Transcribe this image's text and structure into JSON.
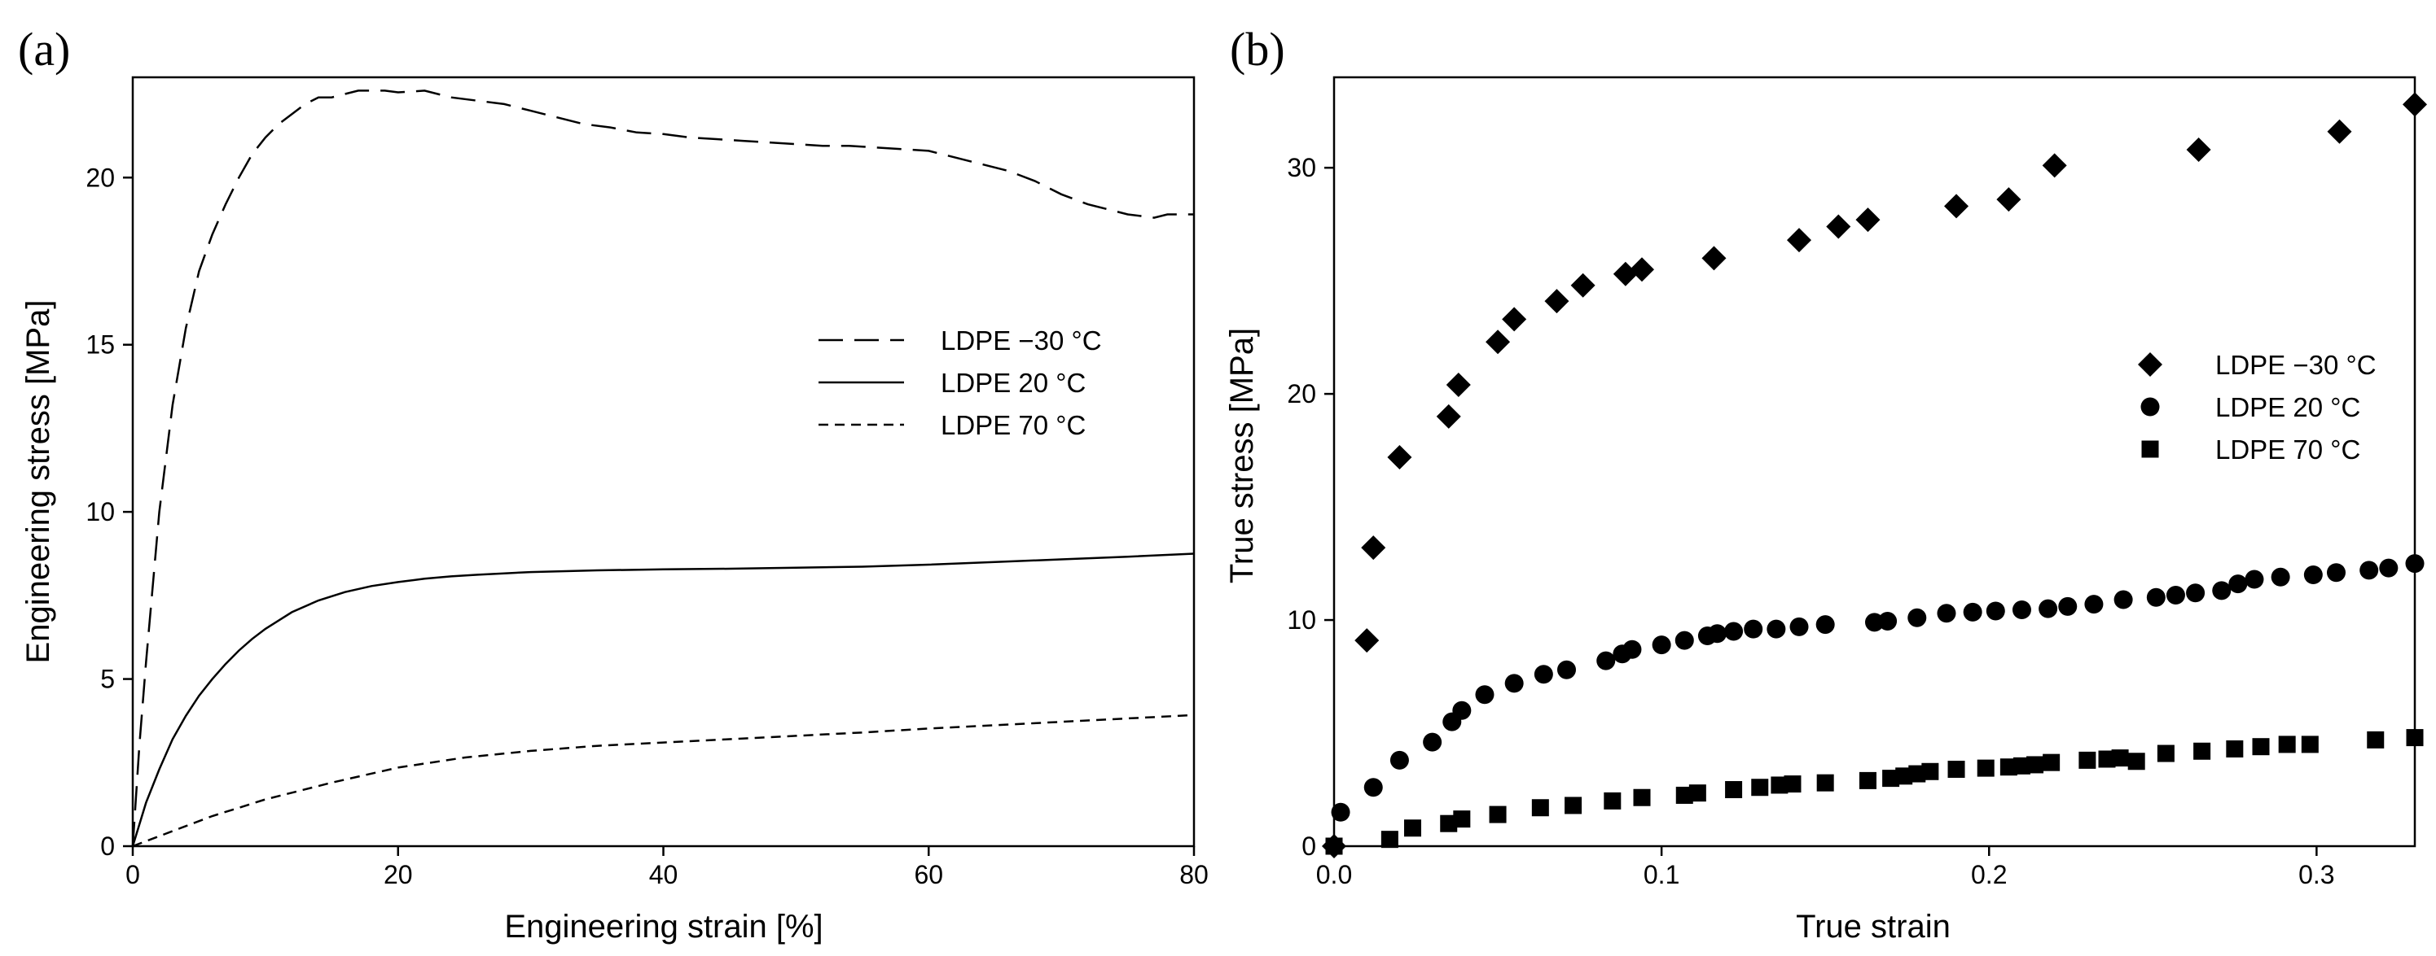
{
  "chart_data": [
    {
      "panel": "(a)",
      "type": "line",
      "xlabel": "Engineering strain [%]",
      "ylabel": "Engineering stress [MPa]",
      "xlim": [
        0,
        80
      ],
      "ylim": [
        0,
        23
      ],
      "xticks": [
        0,
        20,
        40,
        60,
        80
      ],
      "yticks": [
        0,
        5,
        10,
        15,
        20
      ],
      "legend_position": "center-right",
      "series": [
        {
          "name": "LDPE −30 °C",
          "line_style": "long-dash",
          "x": [
            0,
            0.5,
            1,
            2,
            3,
            4,
            5,
            6,
            7,
            8,
            9,
            10,
            11,
            12,
            13,
            14,
            15,
            16,
            17,
            18,
            19,
            20,
            22,
            24,
            26,
            28,
            30,
            32,
            34,
            36,
            38,
            40,
            42,
            44,
            46,
            48,
            50,
            52,
            54,
            56,
            58,
            60,
            62,
            64,
            66,
            68,
            70,
            72,
            74,
            75,
            76,
            77,
            78,
            79,
            80
          ],
          "values": [
            0,
            3.0,
            5.5,
            10.0,
            13.2,
            15.5,
            17.2,
            18.3,
            19.2,
            20.0,
            20.7,
            21.2,
            21.6,
            21.9,
            22.2,
            22.4,
            22.4,
            22.5,
            22.6,
            22.6,
            22.6,
            22.55,
            22.6,
            22.4,
            22.3,
            22.2,
            22.0,
            21.8,
            21.6,
            21.5,
            21.35,
            21.3,
            21.2,
            21.15,
            21.1,
            21.05,
            21.0,
            20.95,
            20.95,
            20.9,
            20.85,
            20.8,
            20.6,
            20.4,
            20.2,
            19.9,
            19.5,
            19.2,
            19.0,
            18.9,
            18.85,
            18.8,
            18.9,
            18.9,
            18.9
          ]
        },
        {
          "name": "LDPE 20 °C",
          "line_style": "solid",
          "x": [
            0,
            1,
            2,
            3,
            4,
            5,
            6,
            7,
            8,
            9,
            10,
            12,
            14,
            16,
            18,
            20,
            22,
            24,
            26,
            28,
            30,
            35,
            40,
            45,
            50,
            55,
            60,
            65,
            70,
            75,
            80
          ],
          "values": [
            0,
            1.3,
            2.3,
            3.2,
            3.9,
            4.5,
            5.0,
            5.45,
            5.85,
            6.2,
            6.5,
            7.0,
            7.35,
            7.6,
            7.78,
            7.9,
            8.0,
            8.07,
            8.12,
            8.16,
            8.2,
            8.25,
            8.28,
            8.3,
            8.33,
            8.36,
            8.42,
            8.5,
            8.58,
            8.66,
            8.75
          ]
        },
        {
          "name": "LDPE 70 °C",
          "line_style": "short-dash",
          "x": [
            0,
            2,
            4,
            6,
            8,
            10,
            12,
            15,
            20,
            25,
            30,
            35,
            40,
            45,
            50,
            55,
            60,
            65,
            70,
            75,
            80
          ],
          "values": [
            0,
            0.3,
            0.6,
            0.9,
            1.15,
            1.4,
            1.6,
            1.9,
            2.35,
            2.65,
            2.85,
            3.0,
            3.1,
            3.2,
            3.3,
            3.4,
            3.52,
            3.62,
            3.72,
            3.82,
            3.92
          ]
        }
      ]
    },
    {
      "panel": "(b)",
      "type": "scatter",
      "xlabel": "True strain",
      "ylabel": "True stress [MPa]",
      "xlim": [
        0,
        0.33
      ],
      "ylim": [
        0,
        34
      ],
      "xticks": [
        0.0,
        0.1,
        0.2,
        0.3
      ],
      "xtick_labels": [
        "0.0",
        "0.1",
        "0.2",
        "0.3"
      ],
      "yticks": [
        0,
        10,
        20,
        30
      ],
      "legend_position": "center-right",
      "series": [
        {
          "name": "LDPE −30 °C",
          "marker": "diamond",
          "x": [
            0,
            0.01,
            0.012,
            0.02,
            0.035,
            0.038,
            0.05,
            0.055,
            0.068,
            0.076,
            0.089,
            0.094,
            0.116,
            0.142,
            0.154,
            0.163,
            0.19,
            0.206,
            0.22,
            0.264,
            0.307,
            0.33
          ],
          "values": [
            0,
            9.1,
            13.2,
            17.2,
            19.0,
            20.4,
            22.3,
            23.3,
            24.1,
            24.8,
            25.3,
            25.5,
            26.0,
            26.8,
            27.4,
            27.7,
            28.3,
            28.6,
            30.1,
            30.8,
            31.6,
            32.8
          ]
        },
        {
          "name": "LDPE 20 °C",
          "marker": "circle",
          "x": [
            0.002,
            0.012,
            0.02,
            0.03,
            0.036,
            0.039,
            0.046,
            0.055,
            0.064,
            0.071,
            0.083,
            0.088,
            0.091,
            0.1,
            0.107,
            0.114,
            0.117,
            0.122,
            0.128,
            0.135,
            0.142,
            0.15,
            0.165,
            0.169,
            0.178,
            0.187,
            0.195,
            0.202,
            0.21,
            0.218,
            0.224,
            0.232,
            0.241,
            0.251,
            0.257,
            0.263,
            0.271,
            0.276,
            0.281,
            0.289,
            0.299,
            0.306,
            0.316,
            0.322,
            0.33
          ],
          "values": [
            1.5,
            2.6,
            3.8,
            4.6,
            5.5,
            6.0,
            6.7,
            7.2,
            7.6,
            7.8,
            8.2,
            8.5,
            8.7,
            8.9,
            9.1,
            9.3,
            9.4,
            9.5,
            9.6,
            9.6,
            9.7,
            9.8,
            9.9,
            9.95,
            10.1,
            10.3,
            10.35,
            10.4,
            10.45,
            10.5,
            10.6,
            10.7,
            10.9,
            11.0,
            11.1,
            11.2,
            11.3,
            11.6,
            11.8,
            11.9,
            12.0,
            12.1,
            12.2,
            12.3,
            12.5
          ]
        },
        {
          "name": "LDPE 70 °C",
          "marker": "square",
          "x": [
            0,
            0.017,
            0.024,
            0.035,
            0.039,
            0.05,
            0.063,
            0.073,
            0.085,
            0.094,
            0.107,
            0.111,
            0.122,
            0.13,
            0.136,
            0.14,
            0.15,
            0.163,
            0.17,
            0.174,
            0.178,
            0.182,
            0.19,
            0.199,
            0.206,
            0.21,
            0.214,
            0.219,
            0.23,
            0.236,
            0.24,
            0.245,
            0.254,
            0.265,
            0.275,
            0.283,
            0.291,
            0.298,
            0.318,
            0.33
          ],
          "values": [
            0,
            0.3,
            0.8,
            1.0,
            1.2,
            1.4,
            1.7,
            1.8,
            2.0,
            2.15,
            2.25,
            2.35,
            2.5,
            2.6,
            2.7,
            2.75,
            2.8,
            2.9,
            3.0,
            3.1,
            3.2,
            3.3,
            3.4,
            3.45,
            3.5,
            3.55,
            3.6,
            3.7,
            3.8,
            3.85,
            3.9,
            3.75,
            4.1,
            4.2,
            4.3,
            4.4,
            4.5,
            4.5,
            4.7,
            4.8
          ]
        }
      ]
    }
  ]
}
